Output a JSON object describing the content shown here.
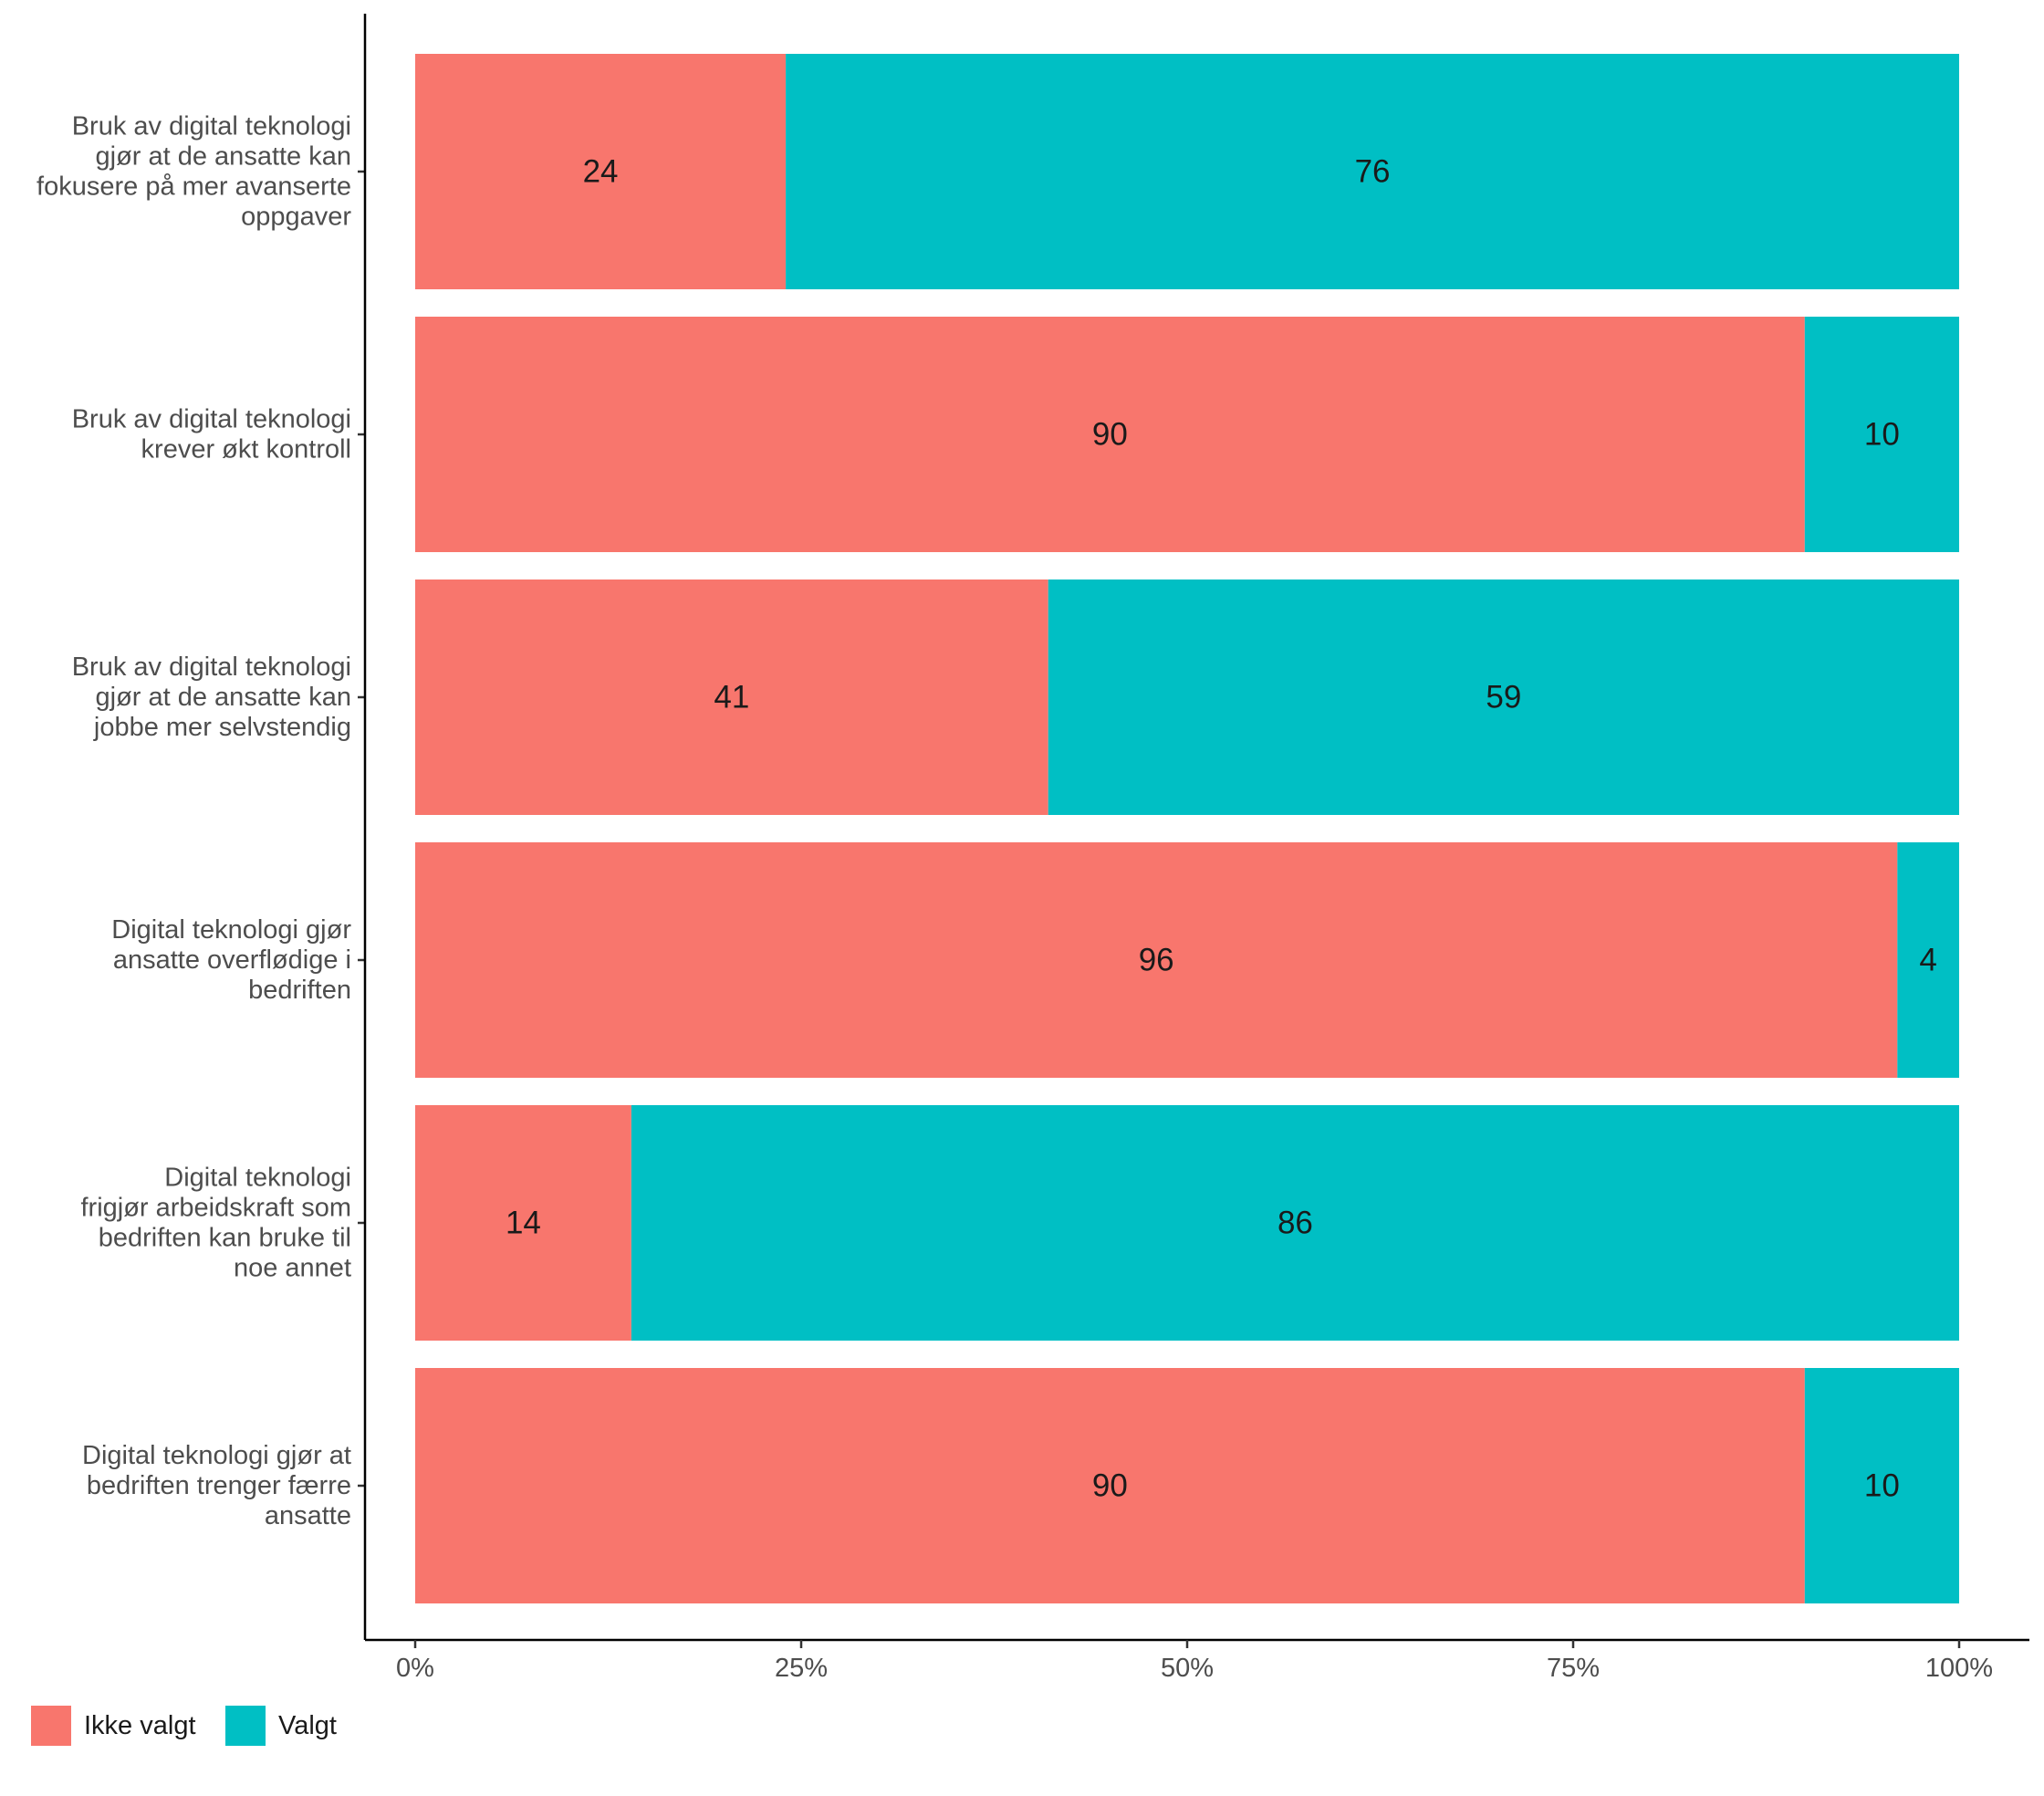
{
  "chart_data": {
    "type": "bar",
    "orientation": "horizontal",
    "stacked": true,
    "title": "",
    "xlabel": "",
    "ylabel": "",
    "xlim": [
      0,
      100
    ],
    "x_ticks": [
      "0%",
      "25%",
      "50%",
      "75%",
      "100%"
    ],
    "grid": false,
    "legend_position": "bottom-left",
    "categories": [
      [
        "Bruk av digital teknologi",
        "gjør at de ansatte kan",
        "fokusere på mer avanserte",
        "oppgaver"
      ],
      [
        "Bruk av digital teknologi",
        "krever økt kontroll"
      ],
      [
        "Bruk av digital teknologi",
        "gjør at de ansatte kan",
        "jobbe mer selvstendig"
      ],
      [
        "Digital teknologi gjør",
        "ansatte overflødige i",
        "bedriften"
      ],
      [
        "Digital teknologi",
        "frigjør arbeidskraft som",
        "bedriften kan bruke til",
        "noe annet"
      ],
      [
        "Digital teknologi gjør at",
        "bedriften trenger færre",
        "ansatte"
      ]
    ],
    "series": [
      {
        "name": "Ikke valgt",
        "color": "#F8766D",
        "values": [
          24,
          90,
          41,
          96,
          14,
          90
        ]
      },
      {
        "name": "Valgt",
        "color": "#00BFC4",
        "values": [
          76,
          10,
          59,
          4,
          86,
          10
        ]
      }
    ]
  }
}
